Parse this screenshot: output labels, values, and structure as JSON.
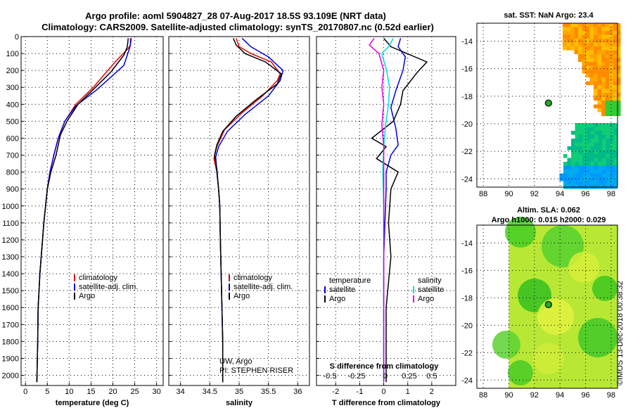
{
  "header": {
    "line1": "Argo profile: aoml 5904827_28 07-Aug-2017 18.5S 93.109E (NRT data)",
    "line2": "Climatology: CARS2009. Satellite-adjusted climatology: synTS_20170807.nc (0.52d earlier)"
  },
  "credit": "©IMOS 13-Dec-2018 00:38:32",
  "colors": {
    "climatology": "#e00000",
    "satellite": "#0000e0",
    "argo": "#000000",
    "cyan": "#00dede",
    "magenta": "#e000e0"
  },
  "depth_axis": {
    "ylim": [
      0,
      2060
    ],
    "ticks": [
      0,
      100,
      200,
      300,
      400,
      500,
      600,
      700,
      800,
      900,
      1000,
      1100,
      1200,
      1300,
      1400,
      1500,
      1600,
      1700,
      1800,
      1900,
      2000
    ]
  },
  "chart_data": [
    {
      "type": "line",
      "id": "temperature",
      "xlabel": "temperature (deg C)",
      "ylabel": "",
      "xlim": [
        -1,
        31.5
      ],
      "xticks": [
        0,
        5,
        10,
        15,
        20,
        25,
        30
      ],
      "legend": [
        "climatology",
        "satellite-adj. clim.",
        "Argo"
      ],
      "series": [
        {
          "name": "climatology",
          "color": "#e00000",
          "x": [
            24.0,
            24.0,
            23.5,
            20.5,
            15.5,
            11.5,
            9.0,
            7.5,
            6.5,
            5.6,
            5.0,
            4.6,
            4.2,
            3.9,
            3.6,
            3.3,
            3.1,
            2.9,
            2.8,
            2.6
          ],
          "depth": [
            10,
            50,
            70,
            150,
            300,
            400,
            500,
            600,
            700,
            800,
            900,
            1000,
            1100,
            1200,
            1300,
            1400,
            1500,
            1600,
            1800,
            2040
          ]
        },
        {
          "name": "satellite-adj. clim.",
          "color": "#0000e0",
          "x": [
            24.2,
            24.0,
            23.8,
            22.5,
            16.5,
            11.5,
            9.0,
            7.5,
            6.5,
            5.6,
            5.0,
            4.6,
            4.2,
            3.9,
            3.6,
            3.3,
            3.1,
            2.9,
            2.8,
            2.6
          ],
          "depth": [
            10,
            50,
            70,
            170,
            310,
            410,
            500,
            600,
            700,
            800,
            900,
            1000,
            1100,
            1200,
            1300,
            1400,
            1500,
            1600,
            1800,
            2040
          ]
        },
        {
          "name": "Argo",
          "color": "#000000",
          "x": [
            23.5,
            23.3,
            22.5,
            19.5,
            16,
            12,
            9.5,
            8.0,
            7.0,
            5.8,
            5.0,
            4.6,
            4.2,
            3.9,
            3.6,
            3.3,
            3.1,
            2.9,
            2.8,
            2.6
          ],
          "depth": [
            10,
            60,
            110,
            210,
            300,
            400,
            500,
            580,
            700,
            800,
            900,
            1000,
            1100,
            1200,
            1300,
            1400,
            1500,
            1600,
            1800,
            2040
          ]
        }
      ]
    },
    {
      "type": "line",
      "id": "salinity",
      "xlabel": "salinity",
      "ylabel": "",
      "xlim": [
        33.8,
        36.2
      ],
      "xticks": [
        "34",
        "34.5",
        "35",
        "35.5",
        "36"
      ],
      "legend": [
        "climatology",
        "satellite-adj. clim.",
        "Argo"
      ],
      "notes": [
        "UW, Argo",
        "PI: STEPHEN RISER"
      ],
      "series": [
        {
          "name": "climatology",
          "color": "#e00000",
          "x": [
            34.95,
            35.0,
            35.2,
            35.55,
            35.7,
            35.65,
            35.4,
            35.05,
            34.75,
            34.62,
            34.57,
            34.62,
            34.65,
            34.67,
            34.68,
            34.7,
            34.72,
            34.72
          ],
          "depth": [
            10,
            60,
            100,
            150,
            220,
            260,
            350,
            450,
            550,
            650,
            720,
            800,
            900,
            1000,
            1200,
            1500,
            1800,
            2040
          ]
        },
        {
          "name": "satellite-adj. clim.",
          "color": "#0000e0",
          "x": [
            35.05,
            35.2,
            35.5,
            35.75,
            35.7,
            35.5,
            35.1,
            34.8,
            34.65,
            34.6,
            34.62,
            34.65,
            34.67,
            34.68,
            34.7,
            34.72,
            34.72
          ],
          "depth": [
            10,
            60,
            120,
            200,
            260,
            350,
            460,
            560,
            650,
            710,
            800,
            900,
            1000,
            1200,
            1500,
            1800,
            2040
          ]
        },
        {
          "name": "Argo",
          "color": "#000000",
          "x": [
            34.9,
            34.95,
            35.1,
            35.45,
            35.72,
            35.65,
            35.3,
            34.95,
            34.72,
            34.62,
            34.58,
            34.62,
            34.65,
            34.67,
            34.68,
            34.7,
            34.72,
            34.72
          ],
          "depth": [
            10,
            50,
            100,
            150,
            220,
            280,
            370,
            470,
            560,
            640,
            700,
            780,
            900,
            1000,
            1200,
            1500,
            1800,
            2040
          ]
        }
      ]
    },
    {
      "type": "line",
      "id": "difference",
      "xlabel": "T difference from climatology",
      "subtitle": "S difference from climatology",
      "ylabel": "",
      "xlim": [
        -2.8,
        3.0
      ],
      "xticks": [
        "-2",
        "-1",
        "0",
        "1",
        "2"
      ],
      "sticks": [
        "-0.5",
        "-0.25",
        "0",
        "0.25",
        "0.5"
      ],
      "legend_left_title": "temperature",
      "legend_right_title": "salinity",
      "legend": [
        "satellite",
        "Argo",
        "satellite",
        "Argo"
      ],
      "series": [
        {
          "name": "temperature satellite",
          "color": "#0000e0",
          "x": [
            0.7,
            0.6,
            0.9,
            0.8,
            0.5,
            0.3,
            0.5,
            0.6,
            0.3,
            0.1,
            0.1,
            0.05,
            0.0,
            0.0,
            0.0,
            0.0
          ],
          "depth": [
            10,
            60,
            120,
            200,
            320,
            420,
            540,
            640,
            700,
            800,
            900,
            1100,
            1300,
            1500,
            1800,
            2040
          ]
        },
        {
          "name": "temperature Argo",
          "color": "#000000",
          "x": [
            0.0,
            0.3,
            1.8,
            1.4,
            0.8,
            0.7,
            0.4,
            -0.5,
            0.1,
            -0.3,
            0.6,
            0.3,
            0.2,
            0.3,
            0.1,
            0.1
          ],
          "depth": [
            10,
            60,
            150,
            210,
            320,
            400,
            500,
            600,
            650,
            720,
            800,
            900,
            1100,
            1300,
            1600,
            2040
          ]
        },
        {
          "name": "salinity satellite",
          "color": "#00dede",
          "x": [
            0.1,
            0.05,
            -0.02,
            0.03,
            0.06,
            0.05,
            0.02,
            0.0,
            -0.01,
            0.0,
            0.0,
            0.0
          ],
          "depth": [
            10,
            60,
            100,
            200,
            300,
            400,
            520,
            650,
            800,
            1000,
            1500,
            2040
          ]
        },
        {
          "name": "salinity Argo",
          "color": "#e000e0",
          "x": [
            -0.1,
            -0.15,
            -0.05,
            0.0,
            -0.02,
            0.0,
            -0.02,
            0.0,
            0.0,
            0.0
          ],
          "depth": [
            10,
            50,
            100,
            200,
            300,
            400,
            520,
            650,
            800,
            2040
          ]
        }
      ]
    },
    {
      "type": "heatmap",
      "id": "sst-map",
      "title": "sat. SST: NaN Argo: 23.4",
      "xlim": [
        87.5,
        98.5
      ],
      "ylim": [
        -24.6,
        -12.7
      ],
      "xticks": [
        "88",
        "90",
        "92",
        "94",
        "96",
        "98"
      ],
      "yticks": [
        "-14",
        "-16",
        "-18",
        "-20",
        "-22",
        "-24"
      ],
      "marker": {
        "lon": 93.1,
        "lat": -18.5
      }
    },
    {
      "type": "heatmap",
      "id": "sla-map",
      "title": "Altim. SLA: 0.062",
      "subtitle": "Argo h1000: 0.015 h2000: 0.029",
      "xlim": [
        87.5,
        98.5
      ],
      "ylim": [
        -24.6,
        -12.7
      ],
      "xticks": [
        "88",
        "90",
        "92",
        "94",
        "96",
        "98"
      ],
      "yticks": [
        "-14",
        "-16",
        "-18",
        "-20",
        "-22",
        "-24"
      ],
      "marker": {
        "lon": 93.1,
        "lat": -18.5
      }
    }
  ]
}
